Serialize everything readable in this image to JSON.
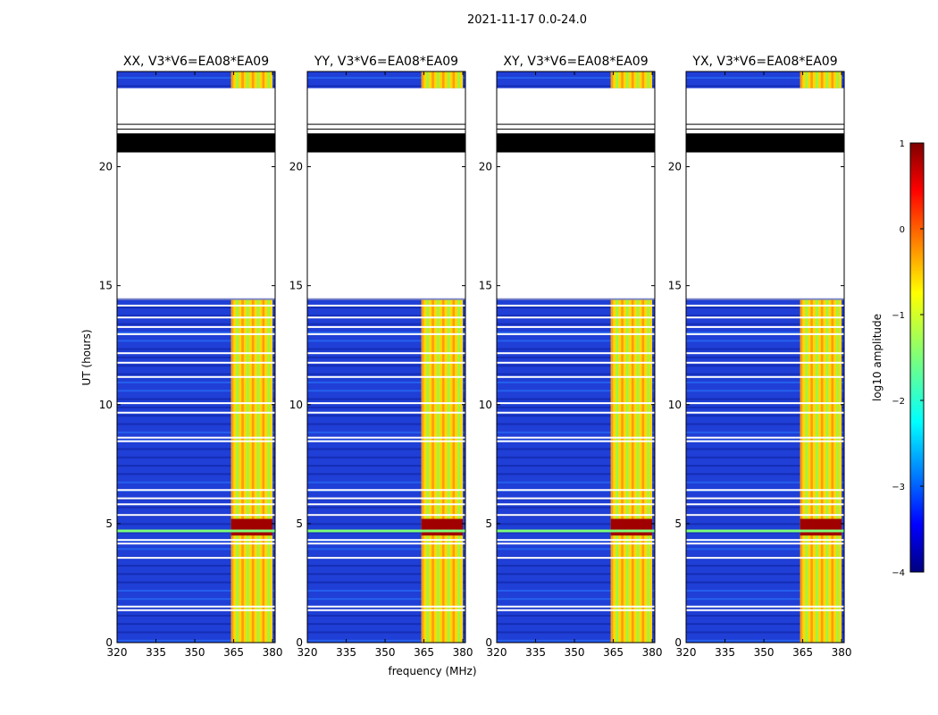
{
  "figure": {
    "suptitle": "2021-11-17 0.0-24.0"
  },
  "chart_data": {
    "type": "heatmap",
    "xlabel": "frequency (MHz)",
    "ylabel": "UT (hours)",
    "xlim": [
      320,
      381
    ],
    "ylim": [
      0,
      24
    ],
    "xticks": [
      320,
      335,
      350,
      365,
      380
    ],
    "yticks": [
      0,
      5,
      10,
      15,
      20
    ],
    "panels": [
      {
        "title": "XX, V3*V6=EA08*EA09",
        "pol": "XX"
      },
      {
        "title": "YY, V3*V6=EA08*EA09",
        "pol": "YY"
      },
      {
        "title": "XY, V3*V6=EA08*EA09",
        "pol": "XY"
      },
      {
        "title": "YX, V3*V6=EA08*EA09",
        "pol": "YX"
      }
    ],
    "data_coverage_ut_hours": [
      [
        0,
        14.4
      ],
      [
        23.3,
        24.0
      ]
    ],
    "flagged_black_ut_hours": [
      [
        20.6,
        21.4
      ]
    ],
    "active_band_mhz": [
      364,
      380
    ],
    "colorbar": {
      "label": "log10 amplitude",
      "range": [
        -4,
        1
      ],
      "ticks": [
        "1",
        "0",
        "−1",
        "−2",
        "−3",
        "−4"
      ],
      "colormap": "jet"
    }
  }
}
